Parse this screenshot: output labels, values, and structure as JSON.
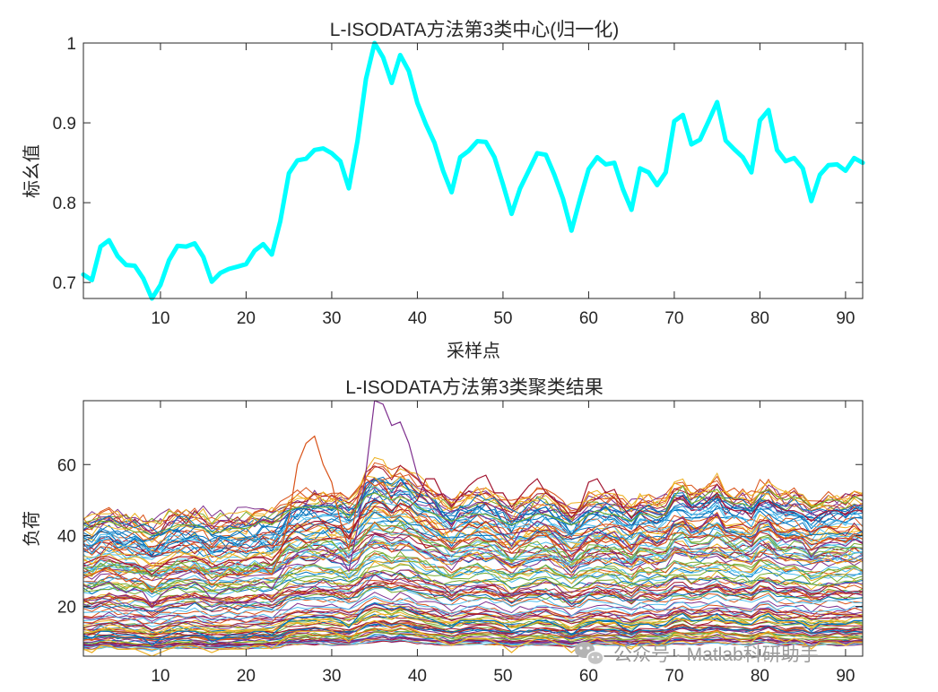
{
  "watermark": {
    "text": "公众号 · Matlab科研助手",
    "icon": "wechat-logo-icon"
  },
  "chart_data": [
    {
      "type": "line",
      "title": "L-ISODATA方法第3类中心(归一化)",
      "xlabel": "采样点",
      "ylabel": "标幺值",
      "xlim": [
        1,
        92
      ],
      "ylim": [
        0.68,
        1.0
      ],
      "xticks": [
        10,
        20,
        30,
        40,
        50,
        60,
        70,
        80,
        90
      ],
      "yticks": [
        0.7,
        0.8,
        0.9,
        1
      ],
      "grid": false,
      "legend": "none",
      "series": [
        {
          "color": "#00FFFF",
          "line_width": "thick",
          "x": [
            1,
            2,
            3,
            4,
            5,
            6,
            7,
            8,
            9,
            10,
            11,
            12,
            13,
            14,
            15,
            16,
            17,
            18,
            19,
            20,
            21,
            22,
            23,
            24,
            25,
            26,
            27,
            28,
            29,
            30,
            31,
            32,
            33,
            34,
            35,
            36,
            37,
            38,
            39,
            40,
            41,
            42,
            43,
            44,
            45,
            46,
            47,
            48,
            49,
            50,
            51,
            52,
            53,
            54,
            55,
            56,
            57,
            58,
            59,
            60,
            61,
            62,
            63,
            64,
            65,
            66,
            67,
            68,
            69,
            70,
            71,
            72,
            73,
            74,
            75,
            76,
            77,
            78,
            79,
            80,
            81,
            82,
            83,
            84,
            85,
            86,
            87,
            88,
            89,
            90,
            91,
            92
          ],
          "values": [
            0.71,
            0.703,
            0.745,
            0.753,
            0.733,
            0.722,
            0.721,
            0.705,
            0.68,
            0.697,
            0.728,
            0.746,
            0.745,
            0.749,
            0.732,
            0.701,
            0.712,
            0.717,
            0.72,
            0.723,
            0.74,
            0.748,
            0.735,
            0.777,
            0.837,
            0.853,
            0.855,
            0.866,
            0.868,
            0.862,
            0.852,
            0.818,
            0.877,
            0.955,
            1.0,
            0.982,
            0.95,
            0.985,
            0.965,
            0.925,
            0.898,
            0.875,
            0.84,
            0.813,
            0.857,
            0.865,
            0.877,
            0.876,
            0.857,
            0.823,
            0.786,
            0.818,
            0.84,
            0.862,
            0.86,
            0.835,
            0.805,
            0.765,
            0.805,
            0.842,
            0.857,
            0.848,
            0.85,
            0.817,
            0.791,
            0.843,
            0.838,
            0.822,
            0.838,
            0.902,
            0.91,
            0.873,
            0.879,
            0.902,
            0.926,
            0.878,
            0.867,
            0.857,
            0.838,
            0.903,
            0.916,
            0.866,
            0.852,
            0.856,
            0.843,
            0.802,
            0.835,
            0.847,
            0.848,
            0.84,
            0.856,
            0.85
          ]
        }
      ]
    },
    {
      "type": "line",
      "title": "L-ISODATA方法第3类聚类结果",
      "xlabel": "",
      "ylabel": "负荷",
      "xlim": [
        1,
        92
      ],
      "ylim": [
        6,
        78
      ],
      "xticks": [
        10,
        20,
        30,
        40,
        50,
        60,
        70,
        80,
        90
      ],
      "yticks": [
        20,
        40,
        60
      ],
      "grid": false,
      "legend": "none",
      "palette": [
        "#0072BD",
        "#D95319",
        "#EDB120",
        "#7E2F8E",
        "#77AC30",
        "#4DBEEE",
        "#A2142F"
      ],
      "series_count": 120,
      "series_range": [
        9,
        50
      ],
      "highlight_series": [
        {
          "color": "#7E2F8E",
          "values": [
            26,
            25,
            26,
            27,
            25,
            24,
            25,
            24,
            20,
            23,
            25,
            26,
            26,
            27,
            25,
            22,
            24,
            25,
            25,
            26,
            26,
            27,
            25,
            29,
            33,
            35,
            36,
            36,
            36,
            35,
            34,
            30,
            42,
            58,
            78,
            77,
            71,
            72,
            66,
            57,
            52,
            49,
            45,
            43,
            46,
            45,
            46,
            45,
            44,
            40,
            37,
            41,
            42,
            44,
            43,
            40,
            37,
            33,
            37,
            40,
            41,
            40,
            41,
            38,
            36,
            40,
            39,
            37,
            39,
            44,
            45,
            41,
            42,
            45,
            46,
            41,
            40,
            39,
            37,
            43,
            44,
            40,
            38,
            39,
            38,
            34,
            37,
            38,
            38,
            37,
            39,
            38
          ]
        },
        {
          "color": "#D95319",
          "values": [
            28,
            29,
            30,
            31,
            29,
            27,
            28,
            27,
            24,
            27,
            29,
            31,
            30,
            31,
            29,
            26,
            28,
            29,
            29,
            30,
            30,
            31,
            29,
            35,
            45,
            60,
            66,
            68,
            60,
            55,
            44,
            36,
            50,
            56,
            54,
            55,
            50,
            48,
            46,
            44,
            42,
            40,
            38,
            36,
            38,
            40,
            41,
            41,
            40,
            38,
            35,
            37,
            38,
            40,
            40,
            38,
            36,
            34,
            36,
            38,
            39,
            38,
            39,
            37,
            35,
            38,
            38,
            37,
            38,
            42,
            43,
            40,
            41,
            42,
            43,
            40,
            40,
            39,
            38,
            41,
            42,
            40,
            39,
            40,
            39,
            36,
            38,
            39,
            39,
            38,
            40,
            39
          ]
        },
        {
          "color": "#A2142F",
          "values": [
            32,
            33,
            34,
            34,
            33,
            32,
            32,
            31,
            29,
            31,
            33,
            34,
            34,
            34,
            33,
            31,
            32,
            33,
            33,
            33,
            34,
            34,
            33,
            36,
            40,
            42,
            43,
            44,
            44,
            43,
            42,
            39,
            44,
            49,
            50,
            49,
            47,
            49,
            48,
            50,
            56,
            56,
            51,
            48,
            51,
            54,
            56,
            57,
            52,
            52,
            48,
            51,
            54,
            56,
            52,
            50,
            48,
            45,
            48,
            55,
            56,
            52,
            53,
            48,
            45,
            47,
            46,
            45,
            46,
            50,
            51,
            48,
            48,
            50,
            52,
            48,
            47,
            47,
            46,
            49,
            50,
            48,
            47,
            47,
            46,
            44,
            46,
            47,
            47,
            46,
            47,
            47
          ]
        },
        {
          "color": "#77AC30",
          "values": [
            43,
            42,
            44,
            44,
            43,
            42,
            41,
            41,
            40,
            41,
            42,
            43,
            43,
            43,
            42,
            41,
            41,
            42,
            42,
            42,
            43,
            44,
            43,
            45,
            47,
            48,
            48,
            48,
            48,
            48,
            47,
            45,
            48,
            51,
            52,
            51,
            50,
            51,
            50,
            48,
            47,
            46,
            45,
            44,
            45,
            46,
            46,
            46,
            45,
            44,
            43,
            44,
            45,
            46,
            46,
            45,
            44,
            43,
            44,
            46,
            47,
            46,
            46,
            45,
            44,
            46,
            46,
            45,
            46,
            51,
            54,
            49,
            50,
            52,
            53,
            50,
            49,
            49,
            48,
            52,
            53,
            51,
            50,
            51,
            50,
            48,
            49,
            50,
            50,
            49,
            51,
            50
          ]
        },
        {
          "color": "#0072BD",
          "values": [
            12,
            11,
            13,
            13,
            12,
            12,
            12,
            11,
            9,
            11,
            12,
            13,
            13,
            13,
            12,
            10,
            11,
            12,
            12,
            12,
            13,
            13,
            12,
            14,
            16,
            17,
            17,
            17,
            17,
            17,
            16,
            14,
            17,
            20,
            21,
            20,
            19,
            20,
            19,
            18,
            17,
            16,
            15,
            14,
            16,
            16,
            16,
            16,
            16,
            15,
            13,
            14,
            15,
            16,
            16,
            15,
            14,
            12,
            14,
            15,
            16,
            16,
            16,
            14,
            13,
            15,
            15,
            14,
            15,
            17,
            18,
            16,
            16,
            17,
            18,
            16,
            16,
            15,
            15,
            17,
            18,
            16,
            16,
            16,
            15,
            13,
            15,
            15,
            15,
            15,
            16,
            16
          ]
        },
        {
          "color": "#EDB120",
          "values": [
            8,
            7,
            9,
            9,
            8,
            8,
            8,
            7,
            6,
            7,
            8,
            9,
            9,
            9,
            8,
            7,
            8,
            8,
            8,
            8,
            9,
            9,
            8,
            10,
            12,
            13,
            13,
            13,
            13,
            13,
            12,
            10,
            13,
            15,
            16,
            15,
            14,
            15,
            14,
            13,
            12,
            11,
            10,
            9,
            10,
            11,
            11,
            11,
            10,
            9,
            7,
            9,
            10,
            11,
            11,
            10,
            9,
            7,
            9,
            10,
            11,
            10,
            10,
            9,
            8,
            10,
            10,
            9,
            10,
            12,
            12,
            11,
            11,
            12,
            13,
            11,
            11,
            10,
            10,
            12,
            13,
            11,
            10,
            11,
            10,
            8,
            10,
            10,
            10,
            9,
            10,
            10
          ]
        }
      ]
    }
  ]
}
